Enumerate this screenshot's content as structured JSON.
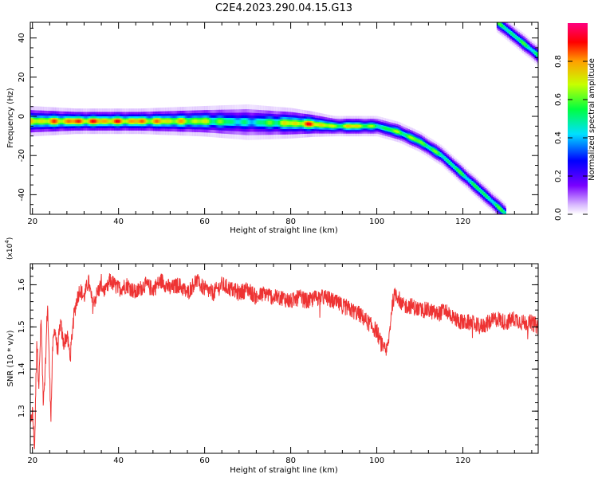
{
  "figure_title": "C2E4.2023.290.04.15.G13",
  "colors": {
    "snr_line": "#ee3333",
    "axes": "#000000",
    "background": "#ffffff",
    "spectrogram_background": "#ffffff"
  },
  "chart_data": [
    {
      "type": "heatmap",
      "title": "",
      "xlabel": "Height of straight line (km)",
      "ylabel": "Frequency (Hz)",
      "xlim": [
        19.5,
        137.5
      ],
      "ylim": [
        -50,
        48
      ],
      "x_ticks": [
        20,
        40,
        60,
        80,
        100,
        120
      ],
      "y_ticks": [
        -40,
        -20,
        0,
        20,
        40
      ],
      "colorbar": {
        "label": "Normalized spectral amplitude",
        "range": [
          0,
          1
        ],
        "ticks": [
          "0.0",
          "0.2",
          "0.4",
          "0.6",
          "0.8"
        ],
        "colormap": "rainbow (purple-blue-cyan-green-yellow-red-magenta)"
      },
      "signal_trace": {
        "description": "Doppler frequency ridge of satellite signal",
        "points": [
          {
            "height_km": 19.5,
            "freq_hz": -2.5,
            "width_hz": 6,
            "amp": 0.8
          },
          {
            "height_km": 30,
            "freq_hz": -2.5,
            "width_hz": 5,
            "amp": 0.95
          },
          {
            "height_km": 45,
            "freq_hz": -2.5,
            "width_hz": 5,
            "amp": 0.9
          },
          {
            "height_km": 60,
            "freq_hz": -2.5,
            "width_hz": 6,
            "amp": 0.75
          },
          {
            "height_km": 70,
            "freq_hz": -3,
            "width_hz": 7,
            "amp": 0.5
          },
          {
            "height_km": 80,
            "freq_hz": -3.5,
            "width_hz": 6,
            "amp": 0.8
          },
          {
            "height_km": 85,
            "freq_hz": -4,
            "width_hz": 5,
            "amp": 0.95
          },
          {
            "height_km": 90,
            "freq_hz": -5,
            "width_hz": 4,
            "amp": 0.7
          },
          {
            "height_km": 95,
            "freq_hz": -5,
            "width_hz": 4,
            "amp": 0.85
          },
          {
            "height_km": 100,
            "freq_hz": -5,
            "width_hz": 4,
            "amp": 0.6
          },
          {
            "height_km": 105,
            "freq_hz": -8,
            "width_hz": 4,
            "amp": 0.7
          },
          {
            "height_km": 110,
            "freq_hz": -13,
            "width_hz": 4,
            "amp": 0.7
          },
          {
            "height_km": 115,
            "freq_hz": -20,
            "width_hz": 4,
            "amp": 0.6
          },
          {
            "height_km": 120,
            "freq_hz": -30,
            "width_hz": 4,
            "amp": 0.6
          },
          {
            "height_km": 125,
            "freq_hz": -40,
            "width_hz": 4,
            "amp": 0.6
          },
          {
            "height_km": 130,
            "freq_hz": -50,
            "width_hz": 4,
            "amp": 0.6
          }
        ]
      },
      "aliased_trace": {
        "points": [
          {
            "height_km": 128,
            "freq_hz": 48,
            "amp": 0.6
          },
          {
            "height_km": 137.5,
            "freq_hz": 31,
            "amp": 0.6
          }
        ]
      }
    },
    {
      "type": "line",
      "title": "",
      "xlabel": "Height of straight line (km)",
      "ylabel": "SNR (10 * v/v)",
      "y_multiplier": "(x10",
      "y_multiplier_exp": "4",
      "y_multiplier_close": ")",
      "xlim": [
        19.5,
        137.5
      ],
      "ylim": [
        1.2,
        1.65
      ],
      "x_ticks": [
        20,
        40,
        60,
        80,
        100,
        120
      ],
      "y_ticks": [
        1.3,
        1.4,
        1.5,
        1.6
      ],
      "series": [
        {
          "points": [
            [
              19.5,
              1.26
            ],
            [
              20.0,
              1.3
            ],
            [
              20.5,
              1.21
            ],
            [
              21.0,
              1.47
            ],
            [
              21.5,
              1.36
            ],
            [
              22.0,
              1.52
            ],
            [
              22.5,
              1.33
            ],
            [
              23.0,
              1.4
            ],
            [
              23.5,
              1.56
            ],
            [
              24.0,
              1.38
            ],
            [
              24.3,
              1.29
            ],
            [
              24.7,
              1.45
            ],
            [
              25.2,
              1.5
            ],
            [
              25.8,
              1.44
            ],
            [
              26.5,
              1.51
            ],
            [
              27.2,
              1.46
            ],
            [
              28.0,
              1.48
            ],
            [
              28.8,
              1.43
            ],
            [
              29.5,
              1.52
            ],
            [
              30.2,
              1.56
            ],
            [
              31.0,
              1.59
            ],
            [
              32.0,
              1.57
            ],
            [
              33.0,
              1.61
            ],
            [
              34.0,
              1.55
            ],
            [
              35.0,
              1.58
            ],
            [
              36.0,
              1.6
            ],
            [
              37.0,
              1.58
            ],
            [
              38.0,
              1.61
            ],
            [
              40.0,
              1.59
            ],
            [
              42.0,
              1.6
            ],
            [
              44.0,
              1.58
            ],
            [
              46.0,
              1.6
            ],
            [
              48.0,
              1.59
            ],
            [
              50.0,
              1.61
            ],
            [
              52.0,
              1.59
            ],
            [
              54.0,
              1.6
            ],
            [
              56.0,
              1.58
            ],
            [
              58.0,
              1.61
            ],
            [
              60.0,
              1.59
            ],
            [
              62.0,
              1.58
            ],
            [
              64.0,
              1.6
            ],
            [
              66.0,
              1.59
            ],
            [
              68.0,
              1.58
            ],
            [
              70.0,
              1.59
            ],
            [
              72.0,
              1.57
            ],
            [
              74.0,
              1.58
            ],
            [
              76.0,
              1.57
            ],
            [
              78.0,
              1.57
            ],
            [
              80.0,
              1.56
            ],
            [
              82.0,
              1.57
            ],
            [
              84.0,
              1.56
            ],
            [
              86.0,
              1.57
            ],
            [
              88.0,
              1.57
            ],
            [
              90.0,
              1.56
            ],
            [
              92.0,
              1.55
            ],
            [
              94.0,
              1.54
            ],
            [
              96.0,
              1.53
            ],
            [
              98.0,
              1.51
            ],
            [
              100.0,
              1.49
            ],
            [
              101.0,
              1.46
            ],
            [
              102.0,
              1.44
            ],
            [
              102.5,
              1.45
            ],
            [
              103.0,
              1.49
            ],
            [
              103.5,
              1.55
            ],
            [
              104.0,
              1.57
            ],
            [
              104.5,
              1.58
            ],
            [
              105.0,
              1.57
            ],
            [
              106.0,
              1.55
            ],
            [
              108.0,
              1.55
            ],
            [
              110.0,
              1.54
            ],
            [
              112.0,
              1.54
            ],
            [
              114.0,
              1.53
            ],
            [
              116.0,
              1.54
            ],
            [
              118.0,
              1.52
            ],
            [
              120.0,
              1.51
            ],
            [
              122.0,
              1.51
            ],
            [
              124.0,
              1.5
            ],
            [
              126.0,
              1.51
            ],
            [
              128.0,
              1.52
            ],
            [
              130.0,
              1.51
            ],
            [
              132.0,
              1.52
            ],
            [
              134.0,
              1.51
            ],
            [
              136.0,
              1.51
            ],
            [
              137.5,
              1.5
            ]
          ],
          "noise_amplitude": 0.02
        }
      ]
    }
  ]
}
